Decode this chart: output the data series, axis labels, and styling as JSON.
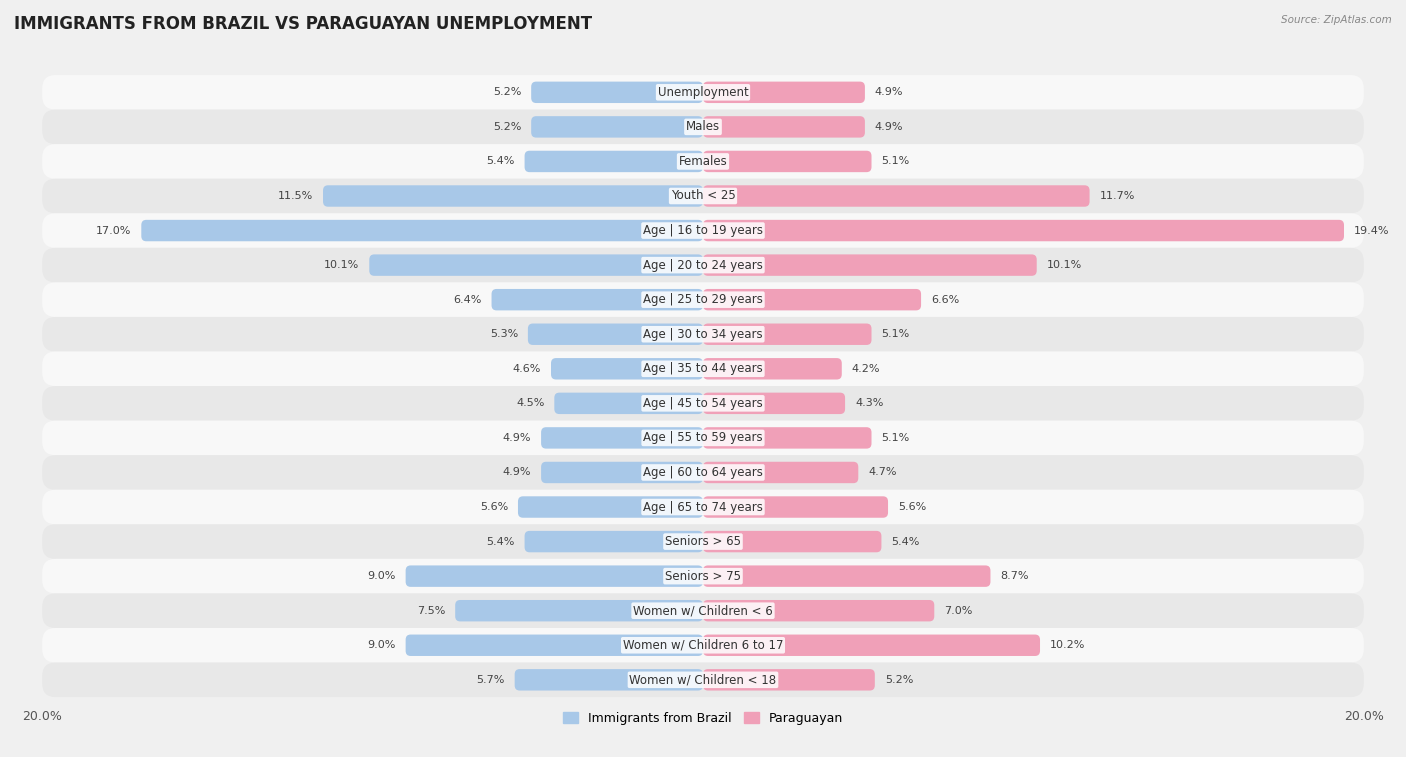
{
  "title": "IMMIGRANTS FROM BRAZIL VS PARAGUAYAN UNEMPLOYMENT",
  "source": "Source: ZipAtlas.com",
  "categories": [
    "Unemployment",
    "Males",
    "Females",
    "Youth < 25",
    "Age | 16 to 19 years",
    "Age | 20 to 24 years",
    "Age | 25 to 29 years",
    "Age | 30 to 34 years",
    "Age | 35 to 44 years",
    "Age | 45 to 54 years",
    "Age | 55 to 59 years",
    "Age | 60 to 64 years",
    "Age | 65 to 74 years",
    "Seniors > 65",
    "Seniors > 75",
    "Women w/ Children < 6",
    "Women w/ Children 6 to 17",
    "Women w/ Children < 18"
  ],
  "brazil_values": [
    5.2,
    5.2,
    5.4,
    11.5,
    17.0,
    10.1,
    6.4,
    5.3,
    4.6,
    4.5,
    4.9,
    4.9,
    5.6,
    5.4,
    9.0,
    7.5,
    9.0,
    5.7
  ],
  "paraguay_values": [
    4.9,
    4.9,
    5.1,
    11.7,
    19.4,
    10.1,
    6.6,
    5.1,
    4.2,
    4.3,
    5.1,
    4.7,
    5.6,
    5.4,
    8.7,
    7.0,
    10.2,
    5.2
  ],
  "brazil_color": "#a8c8e8",
  "paraguay_color": "#f0a0b8",
  "brazil_label": "Immigrants from Brazil",
  "paraguay_label": "Paraguayan",
  "xlim": 20.0,
  "bar_height": 0.62,
  "bg_color": "#f0f0f0",
  "row_colors_odd": "#f8f8f8",
  "row_colors_even": "#e8e8e8",
  "title_fontsize": 12,
  "label_fontsize": 8.5,
  "value_fontsize": 8.0,
  "tick_fontsize": 9
}
